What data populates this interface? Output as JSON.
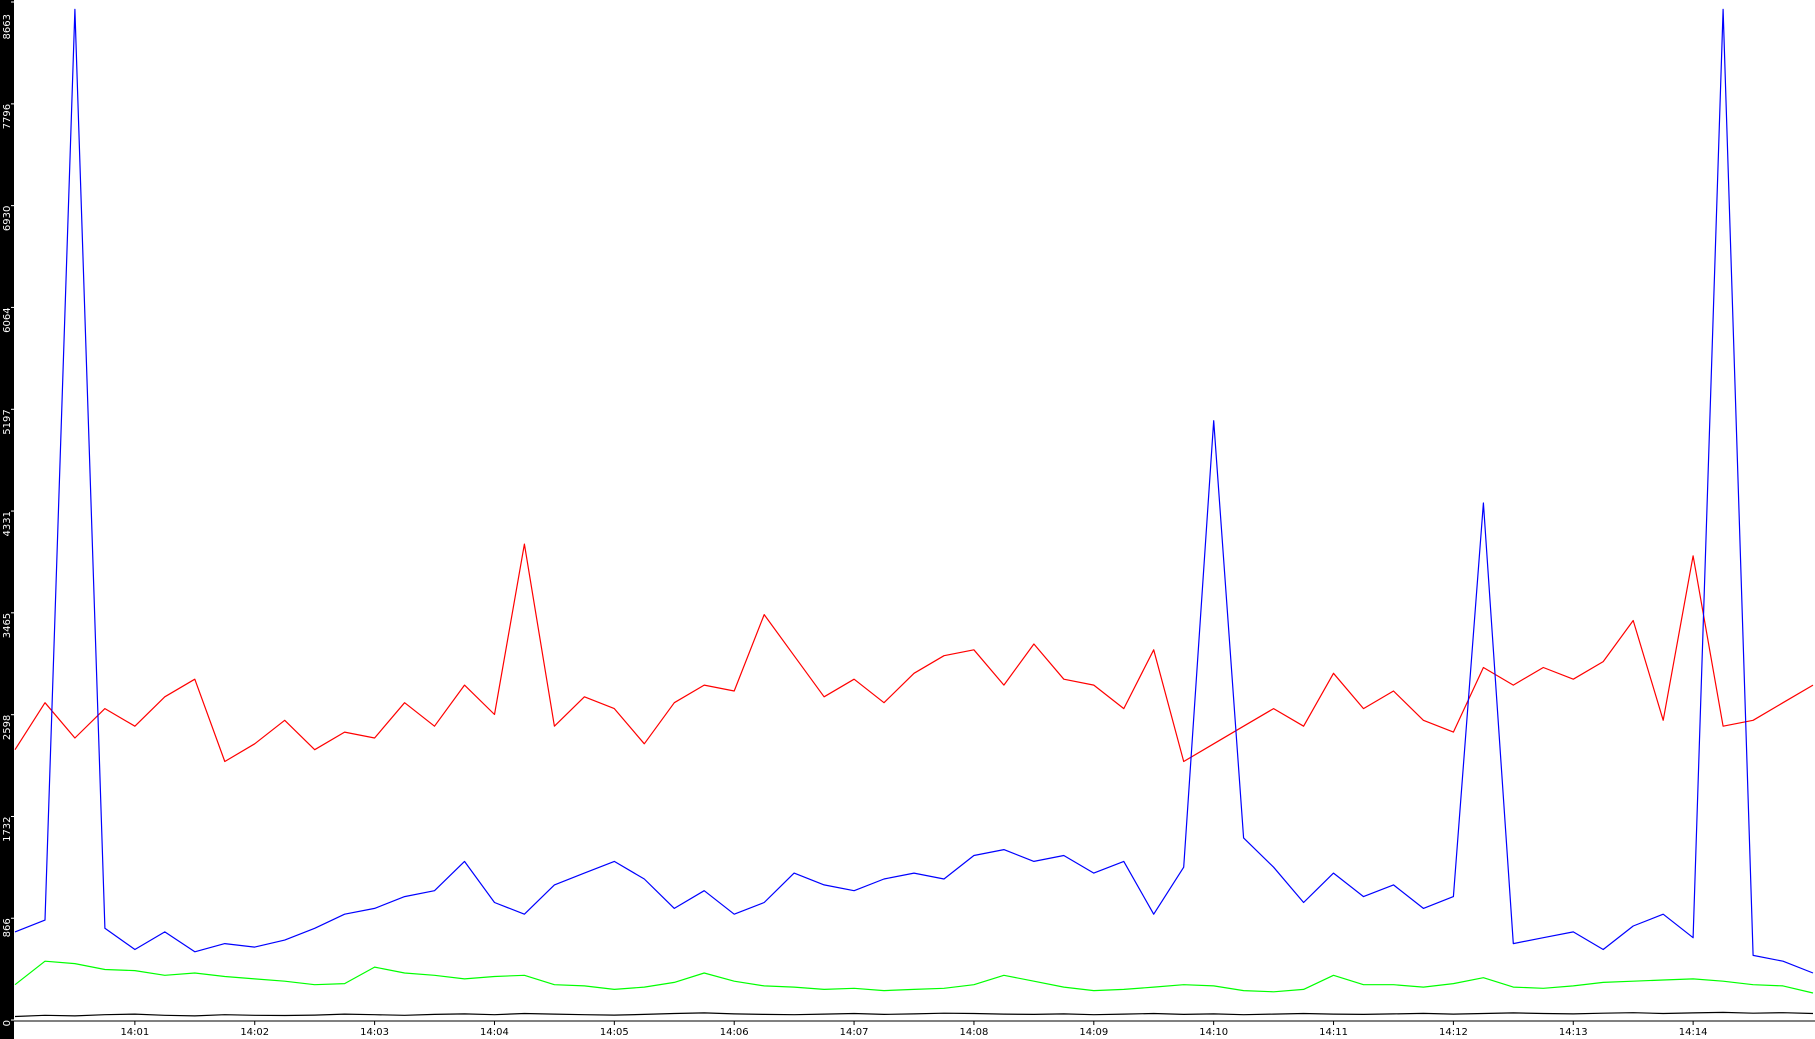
{
  "chart_data": {
    "type": "line",
    "xlim": [
      0,
      15
    ],
    "xticks": [
      {
        "value": 1,
        "label": "14:01"
      },
      {
        "value": 2,
        "label": "14:02"
      },
      {
        "value": 3,
        "label": "14:03"
      },
      {
        "value": 4,
        "label": "14:04"
      },
      {
        "value": 5,
        "label": "14:05"
      },
      {
        "value": 6,
        "label": "14:06"
      },
      {
        "value": 7,
        "label": "14:07"
      },
      {
        "value": 8,
        "label": "14:08"
      },
      {
        "value": 9,
        "label": "14:09"
      },
      {
        "value": 10,
        "label": "14:10"
      },
      {
        "value": 11,
        "label": "14:11"
      },
      {
        "value": 12,
        "label": "14:12"
      },
      {
        "value": 13,
        "label": "14:13"
      },
      {
        "value": 14,
        "label": "14:14"
      }
    ],
    "ylim": [
      0,
      8663
    ],
    "yticks": [
      0,
      866,
      1732,
      2598,
      3465,
      4331,
      5197,
      6064,
      6930,
      7796,
      8663
    ],
    "series": [
      {
        "color": "#ff0000",
        "values": [
          2300,
          2700,
          2400,
          2650,
          2500,
          2750,
          2900,
          2200,
          2350,
          2550,
          2300,
          2450,
          2400,
          2700,
          2500,
          2850,
          2600,
          4050,
          2500,
          2750,
          2650,
          2350,
          2700,
          2850,
          2800,
          3450,
          3100,
          2750,
          2900,
          2700,
          2950,
          3100,
          3150,
          2850,
          3200,
          2900,
          2850,
          2650,
          3150,
          2200,
          2350,
          2500,
          2650,
          2500,
          2950,
          2650,
          2800,
          2550,
          2450,
          3000,
          2850,
          3000,
          2900,
          3050,
          3400,
          2550,
          3950,
          2500,
          2550,
          2700,
          2850
        ]
      },
      {
        "color": "#0000ff",
        "values": [
          750,
          850,
          8600,
          780,
          600,
          750,
          580,
          650,
          620,
          680,
          780,
          900,
          950,
          1050,
          1100,
          1350,
          1000,
          900,
          1150,
          1250,
          1350,
          1200,
          950,
          1100,
          900,
          1000,
          1250,
          1150,
          1100,
          1200,
          1250,
          1200,
          1400,
          1450,
          1350,
          1400,
          1250,
          1350,
          900,
          1300,
          5100,
          1550,
          1300,
          1000,
          1250,
          1050,
          1150,
          950,
          1050,
          4400,
          650,
          700,
          750,
          600,
          800,
          900,
          700,
          8600,
          550,
          500,
          400
        ]
      },
      {
        "color": "#00ff00",
        "values": [
          300,
          500,
          480,
          430,
          420,
          380,
          400,
          370,
          350,
          330,
          300,
          310,
          450,
          400,
          380,
          350,
          370,
          380,
          300,
          290,
          260,
          280,
          320,
          400,
          330,
          290,
          280,
          260,
          270,
          250,
          260,
          270,
          300,
          380,
          330,
          280,
          250,
          260,
          280,
          300,
          290,
          250,
          240,
          260,
          380,
          300,
          300,
          280,
          310,
          360,
          280,
          270,
          290,
          320,
          330,
          340,
          350,
          330,
          300,
          290,
          230
        ]
      },
      {
        "color": "#000000",
        "values": [
          30,
          40,
          35,
          45,
          50,
          40,
          35,
          45,
          40,
          38,
          42,
          50,
          45,
          40,
          48,
          52,
          45,
          55,
          50,
          45,
          42,
          48,
          55,
          60,
          52,
          48,
          45,
          50,
          55,
          48,
          52,
          58,
          55,
          50,
          48,
          52,
          45,
          50,
          55,
          48,
          52,
          45,
          50,
          55,
          50,
          48,
          52,
          56,
          50,
          55,
          60,
          55,
          52,
          58,
          62,
          55,
          60,
          65,
          58,
          62,
          55
        ]
      }
    ]
  }
}
